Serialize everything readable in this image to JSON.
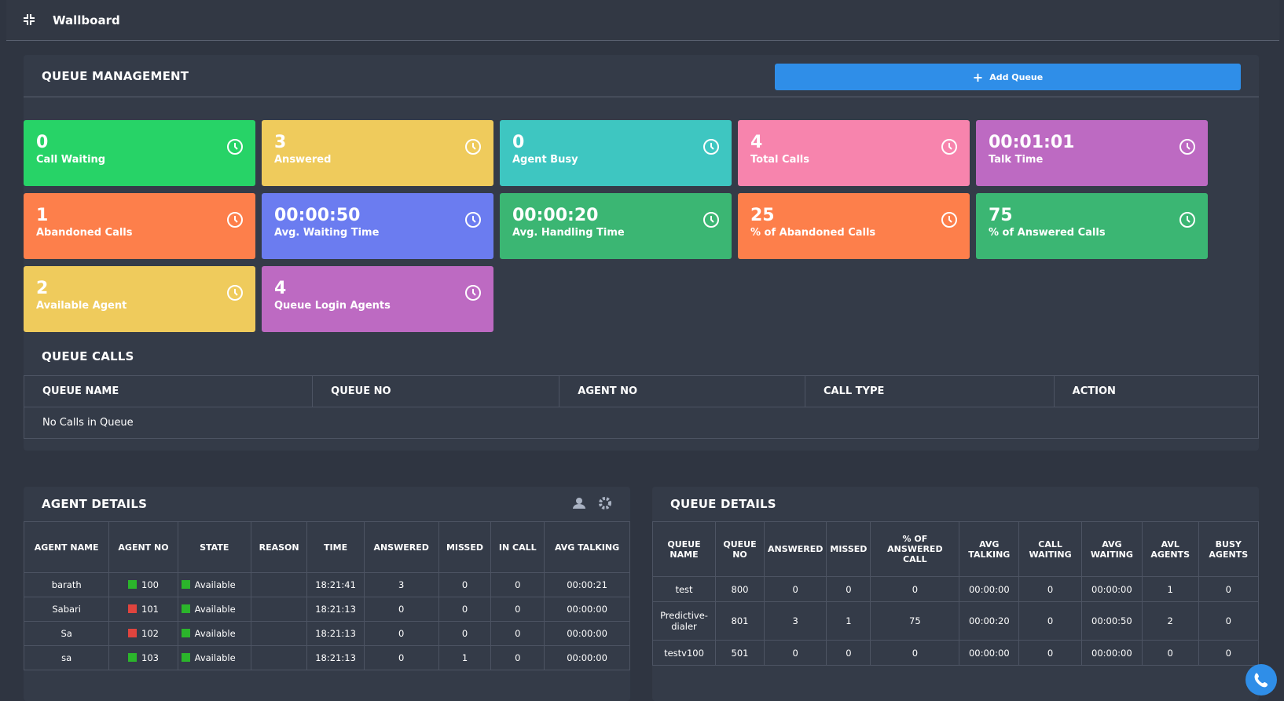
{
  "header": {
    "title": "Wallboard"
  },
  "queue_management": {
    "title": "QUEUE MANAGEMENT",
    "add_button": "Add Queue",
    "cards": [
      {
        "value": 0,
        "label": "Call Waiting",
        "color": "#27d367"
      },
      {
        "value": 3,
        "label": "Answered",
        "color": "#efcb5c"
      },
      {
        "value": 0,
        "label": "Agent Busy",
        "color": "#3ec6c1"
      },
      {
        "value": 4,
        "label": "Total Calls",
        "color": "#f784ad"
      },
      {
        "value": "00:01:01",
        "label": "Talk Time",
        "color": "#bd6ac2"
      },
      {
        "value": 1,
        "label": "Abandoned Calls",
        "color": "#fd7f4b"
      },
      {
        "value": "00:00:50",
        "label": "Avg. Waiting Time",
        "color": "#6b7cf0"
      },
      {
        "value": "00:00:20",
        "label": "Avg. Handling Time",
        "color": "#3bb673"
      },
      {
        "value": 25,
        "label": "% of Abandoned Calls",
        "color": "#fd7f4b"
      },
      {
        "value": 75,
        "label": "% of Answered Calls",
        "color": "#3bb673"
      },
      {
        "value": 2,
        "label": "Available Agent",
        "color": "#efcb5c"
      },
      {
        "value": 4,
        "label": "Queue Login Agents",
        "color": "#bd6ac2"
      }
    ]
  },
  "queue_calls": {
    "title": "QUEUE CALLS",
    "columns": [
      "QUEUE NAME",
      "QUEUE NO",
      "AGENT NO",
      "CALL TYPE",
      "ACTION"
    ],
    "empty": "No Calls in Queue"
  },
  "agent_details": {
    "title": "AGENT DETAILS",
    "columns": [
      "AGENT NAME",
      "AGENT NO",
      "STATE",
      "REASON",
      "TIME",
      "ANSWERED",
      "MISSED",
      "IN CALL",
      "AVG TALKING"
    ],
    "rows": [
      {
        "name": "barath",
        "no": 100,
        "no_color": "#2bb52b",
        "state": "Available",
        "state_color": "#2bb52b",
        "time": "18:21:41",
        "answered": 3,
        "missed": 0,
        "in_call": 0,
        "avg_talking": "00:00:21"
      },
      {
        "name": "Sabari",
        "no": 101,
        "no_color": "#e0443e",
        "state": "Available",
        "state_color": "#2bb52b",
        "time": "18:21:13",
        "answered": 0,
        "missed": 0,
        "in_call": 0,
        "avg_talking": "00:00:00"
      },
      {
        "name": "Sa",
        "no": 102,
        "no_color": "#e0443e",
        "state": "Available",
        "state_color": "#2bb52b",
        "time": "18:21:13",
        "answered": 0,
        "missed": 0,
        "in_call": 0,
        "avg_talking": "00:00:00"
      },
      {
        "name": "sa",
        "no": 103,
        "no_color": "#2bb52b",
        "state": "Available",
        "state_color": "#2bb52b",
        "time": "18:21:13",
        "answered": 0,
        "missed": 1,
        "in_call": 0,
        "avg_talking": "00:00:00"
      }
    ]
  },
  "queue_details": {
    "title": "QUEUE DETAILS",
    "columns": [
      "QUEUE NAME",
      "QUEUE NO",
      "ANSWERED",
      "MISSED",
      "% OF ANSWERED CALL",
      "AVG TALKING",
      "CALL WAITING",
      "AVG WAITING",
      "AVL AGENTS",
      "BUSY AGENTS"
    ],
    "rows": [
      [
        "test",
        800,
        0,
        0,
        0,
        "00:00:00",
        0,
        "00:00:00",
        1,
        0
      ],
      [
        "Predictive-dialer",
        801,
        3,
        1,
        75,
        "00:00:20",
        0,
        "00:00:50",
        2,
        0
      ],
      [
        "testv100",
        501,
        0,
        0,
        0,
        "00:00:00",
        0,
        "00:00:00",
        0,
        0
      ]
    ]
  }
}
